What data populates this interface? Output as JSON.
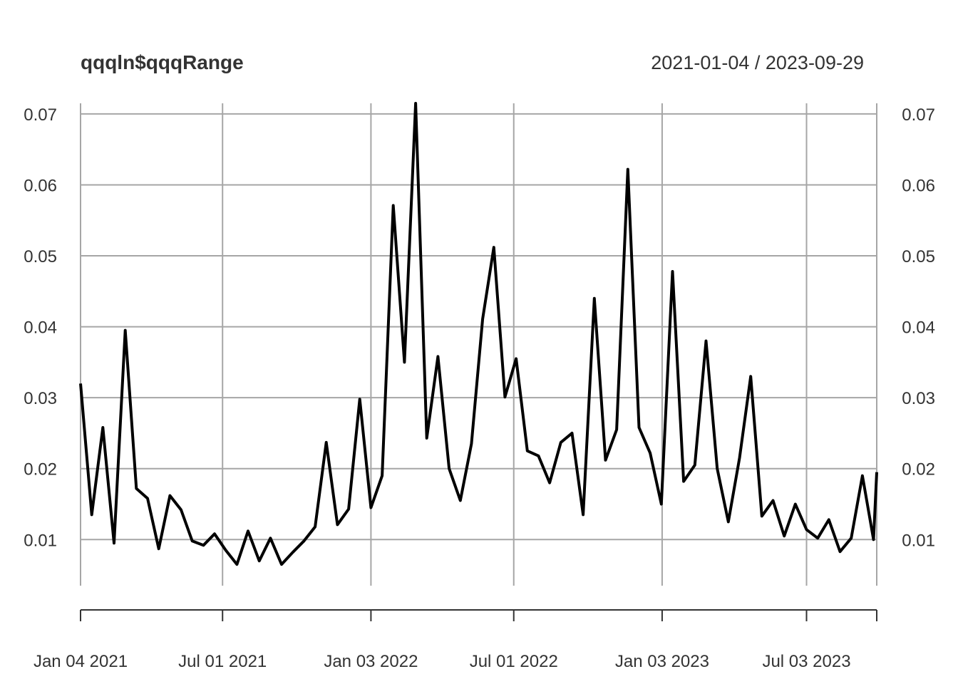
{
  "chart_data": {
    "type": "line",
    "title": "qqqln$qqqRange",
    "date_range_label": "2021-01-04 / 2023-09-29",
    "start_date": "2021-01-04",
    "end_date": "2023-09-29",
    "ylim": [
      0.0035,
      0.0715
    ],
    "y_ticks": [
      "0.01",
      "0.02",
      "0.03",
      "0.04",
      "0.05",
      "0.06",
      "0.07"
    ],
    "x_ticks": [
      {
        "date": "2021-01-04",
        "label": "Jan 04 2021"
      },
      {
        "date": "2021-07-01",
        "label": "Jul 01 2021"
      },
      {
        "date": "2022-01-03",
        "label": "Jan 03 2022"
      },
      {
        "date": "2022-07-01",
        "label": "Jul 01 2022"
      },
      {
        "date": "2023-01-03",
        "label": "Jan 03 2023"
      },
      {
        "date": "2023-07-03",
        "label": "Jul 03 2023"
      }
    ],
    "grid": true,
    "line_color": "#000000",
    "series": [
      {
        "x": [
          "2021-01-04",
          "2021-01-18",
          "2021-02-01",
          "2021-02-15",
          "2021-03-01",
          "2021-03-15",
          "2021-03-29",
          "2021-04-12",
          "2021-04-26",
          "2021-05-10",
          "2021-05-24",
          "2021-06-07",
          "2021-06-21",
          "2021-07-05",
          "2021-07-19",
          "2021-08-02",
          "2021-08-16",
          "2021-08-30",
          "2021-09-13",
          "2021-09-27",
          "2021-10-11",
          "2021-10-25",
          "2021-11-08",
          "2021-11-22",
          "2021-12-06",
          "2021-12-20",
          "2022-01-03",
          "2022-01-17",
          "2022-01-31",
          "2022-02-14",
          "2022-02-28",
          "2022-03-14",
          "2022-03-28",
          "2022-04-11",
          "2022-04-25",
          "2022-05-09",
          "2022-05-23",
          "2022-06-06",
          "2022-06-20",
          "2022-07-04",
          "2022-07-18",
          "2022-08-01",
          "2022-08-15",
          "2022-08-29",
          "2022-09-12",
          "2022-09-26",
          "2022-10-10",
          "2022-10-24",
          "2022-11-07",
          "2022-11-21",
          "2022-12-05",
          "2022-12-19",
          "2023-01-02",
          "2023-01-16",
          "2023-01-30",
          "2023-02-13",
          "2023-02-27",
          "2023-03-13",
          "2023-03-27",
          "2023-04-10",
          "2023-04-24",
          "2023-05-08",
          "2023-05-22",
          "2023-06-05",
          "2023-06-19",
          "2023-07-03",
          "2023-07-17",
          "2023-07-31",
          "2023-08-14",
          "2023-08-28",
          "2023-09-11",
          "2023-09-25",
          "2023-09-29"
        ],
        "values": [
          0.032,
          0.0135,
          0.0258,
          0.0095,
          0.0395,
          0.0172,
          0.0158,
          0.0087,
          0.0162,
          0.0142,
          0.0098,
          0.0092,
          0.0108,
          0.0085,
          0.0065,
          0.0112,
          0.007,
          0.0102,
          0.0065,
          0.0082,
          0.0098,
          0.0118,
          0.0237,
          0.0121,
          0.0143,
          0.0298,
          0.0145,
          0.019,
          0.0571,
          0.035,
          0.0715,
          0.0243,
          0.0358,
          0.02,
          0.0155,
          0.0235,
          0.0411,
          0.0512,
          0.0301,
          0.0355,
          0.0225,
          0.0218,
          0.018,
          0.0237,
          0.025,
          0.0135,
          0.044,
          0.0212,
          0.0255,
          0.0622,
          0.0258,
          0.0222,
          0.015,
          0.0478,
          0.0182,
          0.0205,
          0.038,
          0.02,
          0.0125,
          0.0215,
          0.033,
          0.0133,
          0.0155,
          0.0105,
          0.015,
          0.0114,
          0.0102,
          0.0128,
          0.0083,
          0.0102,
          0.019,
          0.01,
          0.0195
        ]
      }
    ]
  }
}
